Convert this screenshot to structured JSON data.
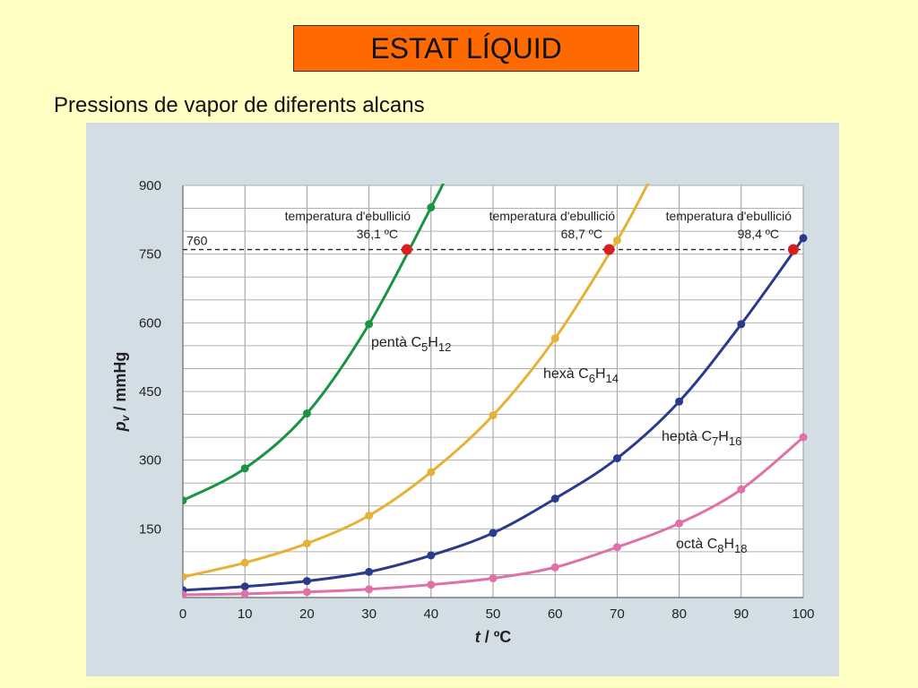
{
  "header": {
    "title": "ESTAT LÍQUID",
    "subtitle": "Pressions de vapor de diferents alcans"
  },
  "chart_data": {
    "type": "line",
    "xlabel": "t / ºC",
    "ylabel": "pv / mmHg",
    "xlim": [
      0,
      100
    ],
    "ylim": [
      0,
      900
    ],
    "x_ticks": [
      0,
      10,
      20,
      30,
      40,
      50,
      60,
      70,
      80,
      90,
      100
    ],
    "y_ticks": [
      150,
      300,
      450,
      600,
      750,
      900
    ],
    "reference_line": {
      "value": 760,
      "label": "760",
      "style": "dashed"
    },
    "series": [
      {
        "name": "pentà C5H12",
        "label_parts": [
          "pentà C",
          "5",
          "H",
          "12"
        ],
        "color": "#1a9441",
        "points": [
          [
            0,
            212
          ],
          [
            10,
            282
          ],
          [
            20,
            402
          ],
          [
            30,
            597
          ],
          [
            40,
            852
          ],
          [
            42,
            905
          ]
        ]
      },
      {
        "name": "hexà C6H14",
        "label_parts": [
          "hexà C",
          "6",
          "H",
          "14"
        ],
        "color": "#e4b236",
        "points": [
          [
            0,
            45
          ],
          [
            10,
            76
          ],
          [
            20,
            118
          ],
          [
            30,
            179
          ],
          [
            40,
            274
          ],
          [
            50,
            398
          ],
          [
            60,
            566
          ],
          [
            70,
            780
          ],
          [
            75,
            905
          ]
        ]
      },
      {
        "name": "heptà C7H16",
        "label_parts": [
          "heptà C",
          "7",
          "H",
          "16"
        ],
        "color": "#2b3a8c",
        "points": [
          [
            0,
            16
          ],
          [
            10,
            24
          ],
          [
            20,
            36
          ],
          [
            30,
            56
          ],
          [
            40,
            92
          ],
          [
            50,
            141
          ],
          [
            60,
            216
          ],
          [
            70,
            304
          ],
          [
            80,
            428
          ],
          [
            90,
            597
          ],
          [
            100,
            785
          ]
        ]
      },
      {
        "name": "octà C8H18",
        "label_parts": [
          "octà C",
          "8",
          "H",
          "18"
        ],
        "color": "#e070a8",
        "points": [
          [
            0,
            6
          ],
          [
            10,
            8
          ],
          [
            20,
            12
          ],
          [
            30,
            18
          ],
          [
            40,
            28
          ],
          [
            50,
            42
          ],
          [
            60,
            66
          ],
          [
            70,
            110
          ],
          [
            80,
            162
          ],
          [
            90,
            236
          ],
          [
            100,
            350
          ]
        ]
      }
    ],
    "boiling_points": [
      {
        "label": "temperatura d'ebullició",
        "value": "36,1 ºC",
        "x": 36.1,
        "y": 760
      },
      {
        "label": "temperatura d'ebullició",
        "value": "68,7 ºC",
        "x": 68.7,
        "y": 760
      },
      {
        "label": "temperatura d'ebullició",
        "value": "98,4 ºC",
        "x": 98.4,
        "y": 760
      }
    ],
    "boiling_marker_color": "#d91e1e",
    "grid": true
  }
}
